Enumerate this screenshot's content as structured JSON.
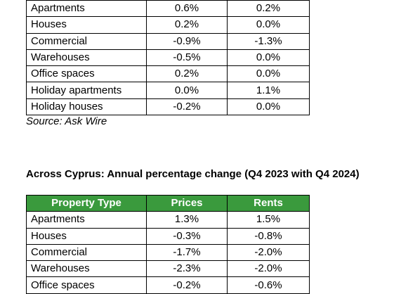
{
  "table1": {
    "rows": [
      [
        "Apartments",
        "0.6%",
        "0.2%"
      ],
      [
        "Houses",
        "0.2%",
        "0.0%"
      ],
      [
        "Commercial",
        "-0.9%",
        "-1.3%"
      ],
      [
        "Warehouses",
        "-0.5%",
        "0.0%"
      ],
      [
        "Office spaces",
        "0.2%",
        "0.0%"
      ],
      [
        "Holiday apartments",
        "0.0%",
        "1.1%"
      ],
      [
        "Holiday houses",
        "-0.2%",
        "0.0%"
      ]
    ],
    "source": "Source: Ask Wire"
  },
  "table2": {
    "title": "Across Cyprus: Annual percentage change (Q4 2023 with Q4 2024)",
    "header": [
      "Property Type",
      "Prices",
      "Rents"
    ],
    "rows": [
      [
        "Apartments",
        "1.3%",
        "1.5%"
      ],
      [
        "Houses",
        "-0.3%",
        "-0.8%"
      ],
      [
        "Commercial",
        "-1.7%",
        "-2.0%"
      ],
      [
        "Warehouses",
        "-2.3%",
        "-2.0%"
      ],
      [
        "Office spaces",
        "-0.2%",
        "-0.6%"
      ]
    ]
  }
}
